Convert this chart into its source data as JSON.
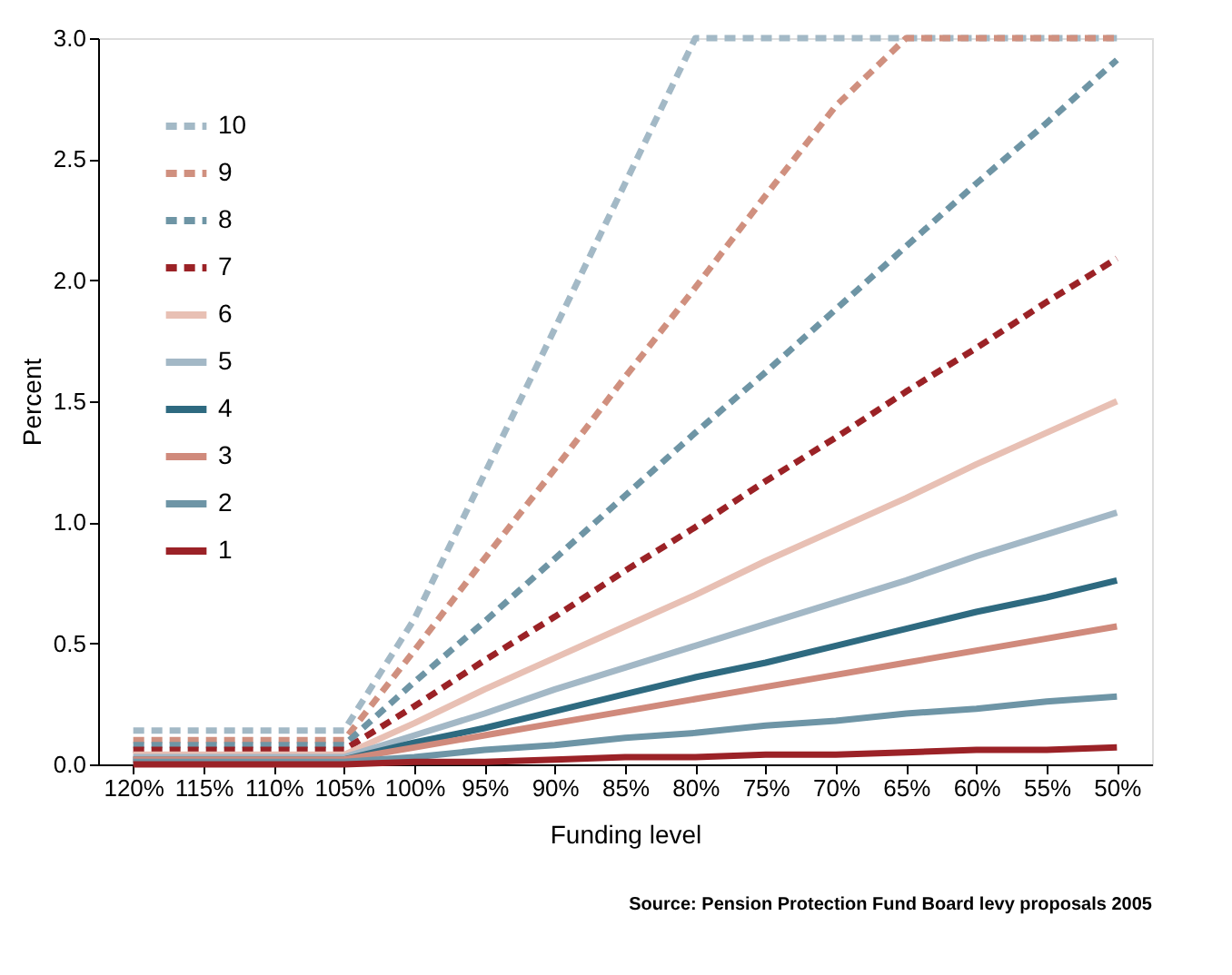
{
  "chart_data": {
    "type": "line",
    "xlabel": "Funding level",
    "ylabel": "Percent",
    "annotations": [
      "Source:  Pension Protection Fund Board levy proposals 2005"
    ],
    "categories": [
      "120%",
      "115%",
      "110%",
      "105%",
      "100%",
      "95%",
      "90%",
      "85%",
      "80%",
      "75%",
      "70%",
      "65%",
      "60%",
      "55%",
      "50%"
    ],
    "ylim": [
      0,
      3.0
    ],
    "yticks": [
      {
        "value": 0,
        "label": "0.0"
      },
      {
        "value": 0.5,
        "label": "0.5"
      },
      {
        "value": 1,
        "label": "1.0"
      },
      {
        "value": 1.5,
        "label": "1.5"
      },
      {
        "value": 2,
        "label": "2.0"
      },
      {
        "value": 2.5,
        "label": "2.5"
      },
      {
        "value": 3,
        "label": "3.0"
      }
    ],
    "grid": false,
    "legend": "top left",
    "marker": "none",
    "series": [
      {
        "name": "10",
        "color": "#a3b9c6",
        "line_style": "dashed",
        "values": [
          0.14,
          0.14,
          0.14,
          0.14,
          0.6,
          1.2,
          1.8,
          2.4,
          3.0,
          3.0,
          3.0,
          3.0,
          3.0,
          3.0,
          3.0
        ]
      },
      {
        "name": "9",
        "color": "#d0907f",
        "line_style": "dashed",
        "values": [
          0.1,
          0.1,
          0.1,
          0.1,
          0.47,
          0.85,
          1.22,
          1.6,
          1.97,
          2.35,
          2.72,
          3.0,
          3.0,
          3.0,
          3.0
        ]
      },
      {
        "name": "8",
        "color": "#6e95a5",
        "line_style": "dashed",
        "values": [
          0.08,
          0.08,
          0.08,
          0.08,
          0.34,
          0.59,
          0.85,
          1.11,
          1.37,
          1.62,
          1.88,
          2.14,
          2.4,
          2.65,
          2.91
        ]
      },
      {
        "name": "7",
        "color": "#9b2226",
        "line_style": "dashed",
        "values": [
          0.06,
          0.06,
          0.06,
          0.06,
          0.24,
          0.43,
          0.61,
          0.8,
          0.98,
          1.17,
          1.35,
          1.54,
          1.72,
          1.91,
          2.09
        ]
      },
      {
        "name": "6",
        "color": "#e8c0b4",
        "line_style": "solid",
        "values": [
          0.04,
          0.04,
          0.04,
          0.04,
          0.17,
          0.31,
          0.44,
          0.57,
          0.7,
          0.84,
          0.97,
          1.1,
          1.24,
          1.37,
          1.5
        ]
      },
      {
        "name": "5",
        "color": "#a3b8c6",
        "line_style": "solid",
        "values": [
          0.03,
          0.03,
          0.03,
          0.03,
          0.12,
          0.21,
          0.31,
          0.4,
          0.49,
          0.58,
          0.67,
          0.76,
          0.86,
          0.95,
          1.04
        ]
      },
      {
        "name": "4",
        "color": "#2e6a80",
        "line_style": "solid",
        "values": [
          0.02,
          0.02,
          0.02,
          0.02,
          0.09,
          0.15,
          0.22,
          0.29,
          0.36,
          0.42,
          0.49,
          0.56,
          0.63,
          0.69,
          0.76
        ]
      },
      {
        "name": "3",
        "color": "#d08a7c",
        "line_style": "solid",
        "values": [
          0.02,
          0.02,
          0.02,
          0.02,
          0.07,
          0.12,
          0.17,
          0.22,
          0.27,
          0.32,
          0.37,
          0.42,
          0.47,
          0.52,
          0.57
        ]
      },
      {
        "name": "2",
        "color": "#6e95a6",
        "line_style": "solid",
        "values": [
          0.01,
          0.01,
          0.01,
          0.01,
          0.03,
          0.06,
          0.08,
          0.11,
          0.13,
          0.16,
          0.18,
          0.21,
          0.23,
          0.26,
          0.28
        ]
      },
      {
        "name": "1",
        "color": "#9b2227",
        "line_style": "solid",
        "values": [
          0,
          0,
          0,
          0,
          0.01,
          0.01,
          0.02,
          0.03,
          0.03,
          0.04,
          0.04,
          0.05,
          0.06,
          0.06,
          0.07
        ]
      }
    ]
  }
}
